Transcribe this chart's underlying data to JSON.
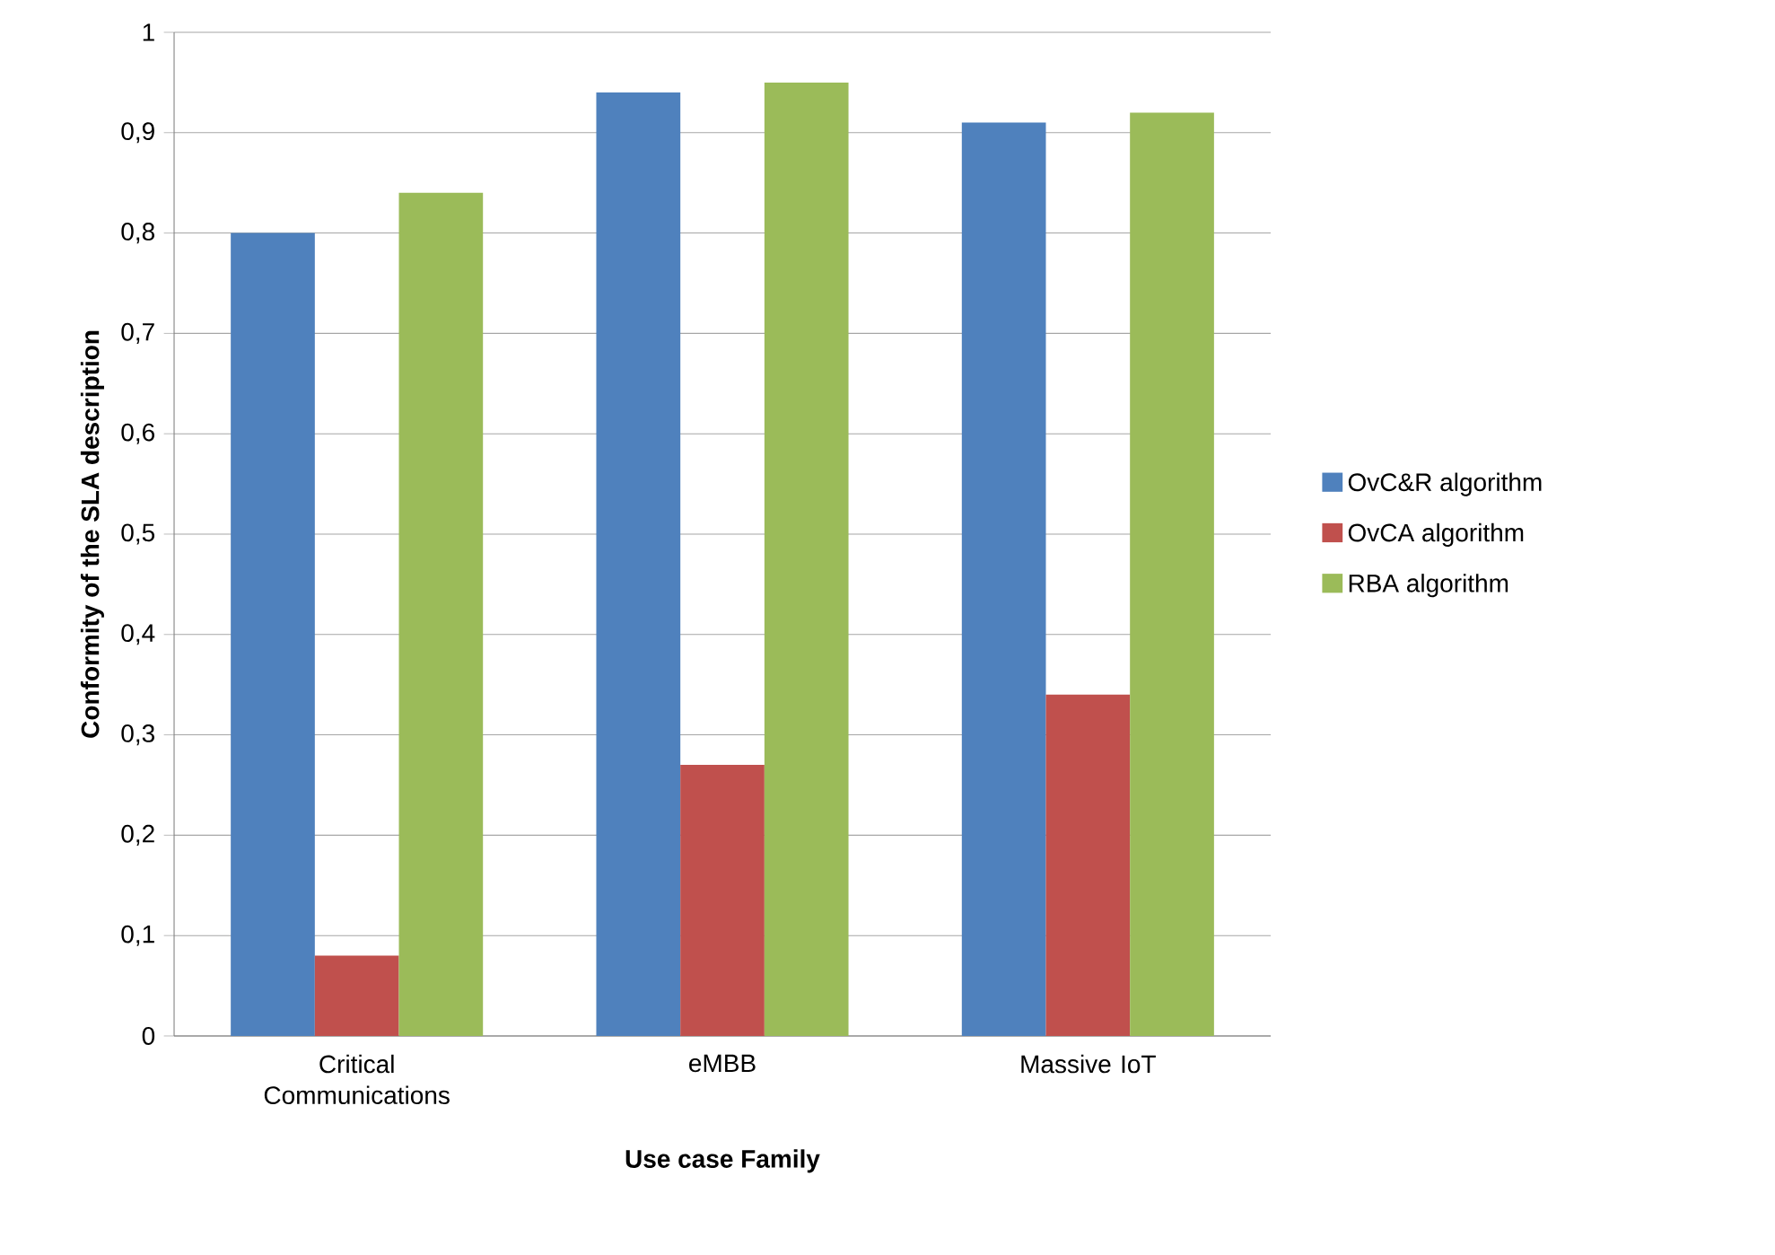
{
  "chart_data": {
    "type": "bar",
    "xlabel": "Use case Family",
    "ylabel": "Conformity of the SLA description",
    "categories": [
      "Critical Communications",
      "eMBB",
      "Massive IoT"
    ],
    "series": [
      {
        "name": "OvC&R algorithm",
        "color": "#4f81bd",
        "values": [
          0.8,
          0.94,
          0.91
        ]
      },
      {
        "name": "OvCA algorithm",
        "color": "#c0504d",
        "values": [
          0.08,
          0.27,
          0.34
        ]
      },
      {
        "name": "RBA algorithm",
        "color": "#9bbb59",
        "values": [
          0.84,
          0.95,
          0.92
        ]
      }
    ],
    "ylim": [
      0,
      1
    ],
    "yticks": [
      0,
      {
        "value": 0.1,
        "label": "0,1"
      },
      {
        "value": 0.2,
        "label": "0,2"
      },
      {
        "value": 0.3,
        "label": "0,3"
      },
      {
        "value": 0.4,
        "label": "0,4"
      },
      {
        "value": 0.5,
        "label": "0,5"
      },
      {
        "value": 0.6,
        "label": "0,6"
      },
      {
        "value": 0.7,
        "label": "0,7"
      },
      {
        "value": 0.8,
        "label": "0,8"
      },
      {
        "value": 0.9,
        "label": "0,9"
      },
      1
    ],
    "grid": "y",
    "legend": "right"
  }
}
